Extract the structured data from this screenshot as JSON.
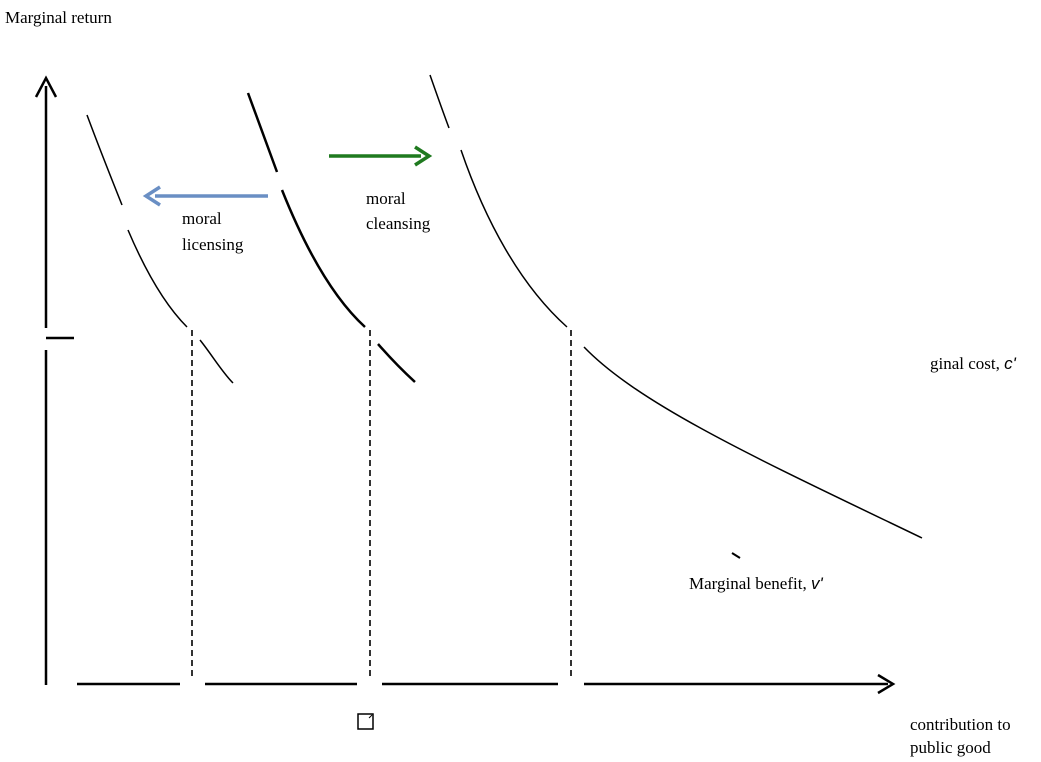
{
  "y_axis_label": "Marginal return",
  "x_axis_label_line1": "contribution to",
  "x_axis_label_line2": "public good",
  "mc_label_text": "ginal cost,",
  "mc_symbol": "c'",
  "mb_label_text": "Marginal benefit,",
  "mb_symbol": "v'",
  "licensing_line1": "moral",
  "licensing_line2": "licensing",
  "cleansing_line1": "moral",
  "cleansing_line2": "cleansing",
  "colors": {
    "licensing_arrow": "#6a8fc4",
    "cleansing_arrow": "#1f7a1f",
    "axes": "#000000"
  },
  "icons": [
    "checkbox-icon"
  ]
}
